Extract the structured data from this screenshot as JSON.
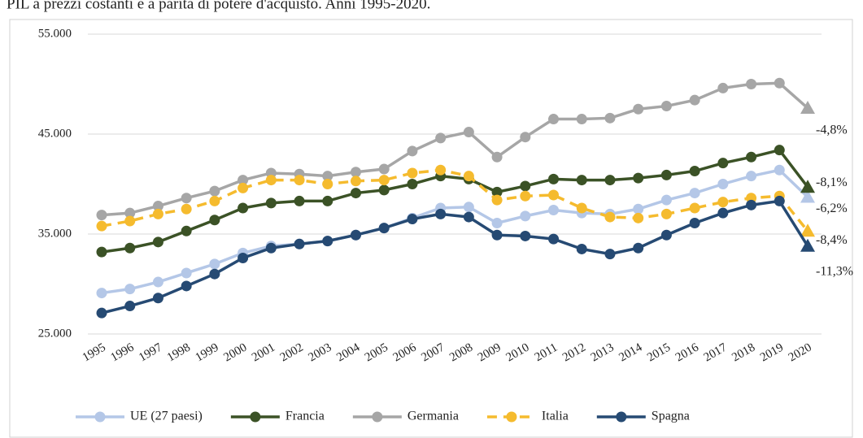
{
  "chart_data": {
    "type": "line",
    "title": "PIL a prezzi costanti e a parità di potere d'acquisto. Anni 1995-2020.",
    "categories": [
      "1995",
      "1996",
      "1997",
      "1998",
      "1999",
      "2000",
      "2001",
      "2002",
      "2003",
      "2004",
      "2005",
      "2006",
      "2007",
      "2008",
      "2009",
      "2010",
      "2011",
      "2012",
      "2013",
      "2014",
      "2015",
      "2016",
      "2017",
      "2018",
      "2019",
      "2020"
    ],
    "ylim": [
      25000,
      55000
    ],
    "yticks": [
      {
        "value": 25000,
        "label": "25.000"
      },
      {
        "value": 35000,
        "label": "35.000"
      },
      {
        "value": 45000,
        "label": "45.000"
      },
      {
        "value": 55000,
        "label": "55.000"
      }
    ],
    "grid": true,
    "legend": "bottom",
    "series": [
      {
        "name": "UE (27 paesi)",
        "color": "#b4c7e7",
        "end_label": "-6,2%",
        "values": [
          29100,
          29500,
          30200,
          31100,
          32000,
          33100,
          33800,
          34000,
          34300,
          34900,
          35600,
          36600,
          37600,
          37700,
          36100,
          36800,
          37400,
          37100,
          37000,
          37500,
          38400,
          39100,
          40000,
          40800,
          41400,
          38700
        ]
      },
      {
        "name": "Francia",
        "color": "#3b5226",
        "end_label": "-8,1%",
        "values": [
          33200,
          33600,
          34200,
          35300,
          36400,
          37600,
          38100,
          38300,
          38300,
          39100,
          39400,
          40000,
          40800,
          40500,
          39200,
          39800,
          40500,
          40400,
          40400,
          40600,
          40900,
          41300,
          42100,
          42700,
          43400,
          39700
        ]
      },
      {
        "name": "Germania",
        "color": "#a6a6a6",
        "end_label": "-4,8%",
        "values": [
          36900,
          37100,
          37800,
          38600,
          39300,
          40400,
          41100,
          41000,
          40800,
          41200,
          41500,
          43300,
          44600,
          45200,
          42700,
          44700,
          46500,
          46500,
          46600,
          47500,
          47800,
          48400,
          49600,
          50000,
          50100,
          47600
        ]
      },
      {
        "name": "Italia",
        "color": "#f5bb2e",
        "dashed": true,
        "end_label": "-8,4%",
        "values": [
          35800,
          36300,
          37000,
          37500,
          38300,
          39600,
          40400,
          40400,
          40000,
          40300,
          40400,
          41100,
          41400,
          40800,
          38400,
          38800,
          38900,
          37600,
          36700,
          36600,
          37000,
          37600,
          38200,
          38600,
          38800,
          35300
        ]
      },
      {
        "name": "Spagna",
        "color": "#264a73",
        "end_label": "-11,3%",
        "values": [
          27100,
          27800,
          28600,
          29800,
          31000,
          32600,
          33600,
          34000,
          34300,
          34900,
          35600,
          36500,
          37000,
          36700,
          34900,
          34800,
          34500,
          33500,
          33000,
          33600,
          34900,
          36100,
          37100,
          37900,
          38300,
          33800
        ]
      }
    ]
  }
}
